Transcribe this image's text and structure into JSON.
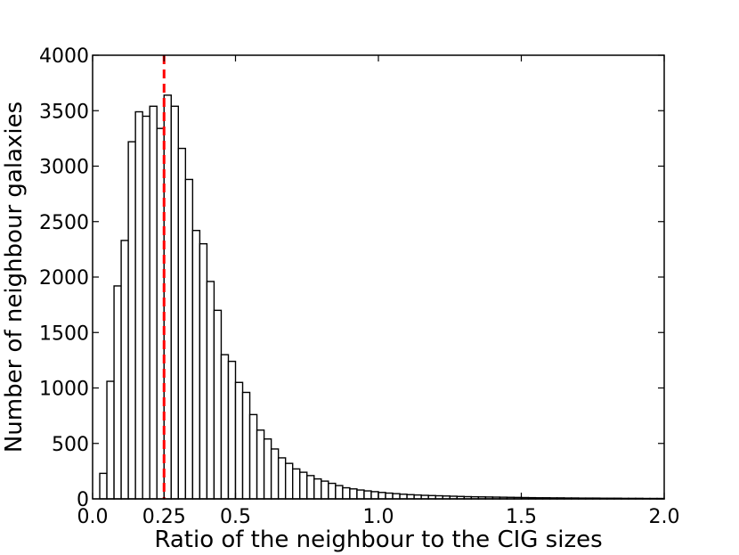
{
  "chart_data": {
    "type": "bar",
    "title": "",
    "xlabel": "Ratio of the neighbour to the CIG sizes",
    "ylabel": "Number of neighbour galaxies",
    "xlim": [
      0.0,
      2.0
    ],
    "ylim": [
      0,
      4000
    ],
    "grid": false,
    "bin_width": 0.025,
    "bin_start": 0.025,
    "values": [
      230,
      1060,
      1920,
      2330,
      3220,
      3490,
      3450,
      3540,
      3340,
      3640,
      3540,
      3160,
      2880,
      2420,
      2300,
      1960,
      1700,
      1300,
      1240,
      1050,
      960,
      760,
      620,
      540,
      450,
      370,
      320,
      270,
      240,
      210,
      180,
      160,
      140,
      120,
      100,
      90,
      80,
      72,
      65,
      58,
      52,
      47,
      42,
      38,
      35,
      32,
      30,
      28,
      26,
      24,
      22,
      20,
      19,
      18,
      17,
      16,
      15,
      14,
      13,
      12,
      11,
      10,
      10,
      9,
      9,
      8,
      8,
      7,
      7,
      7,
      6,
      6,
      6,
      5,
      5,
      5,
      4,
      4,
      4
    ],
    "xticks": [
      {
        "value": 0.0,
        "label": "0.0"
      },
      {
        "value": 0.25,
        "label": "0.25",
        "color": "#ff0000"
      },
      {
        "value": 0.5,
        "label": "0.5"
      },
      {
        "value": 1.0,
        "label": "1.0"
      },
      {
        "value": 1.5,
        "label": "1.5"
      },
      {
        "value": 2.0,
        "label": "2.0"
      }
    ],
    "yticks": [
      0,
      500,
      1000,
      1500,
      2000,
      2500,
      3000,
      3500,
      4000
    ],
    "annotations": [
      {
        "type": "vline",
        "x": 0.25,
        "color": "#ff0000",
        "style": "dashed"
      }
    ],
    "colors": {
      "bar_fill": "#ffffff",
      "bar_edge": "#000000",
      "marker": "#ff0000"
    }
  }
}
